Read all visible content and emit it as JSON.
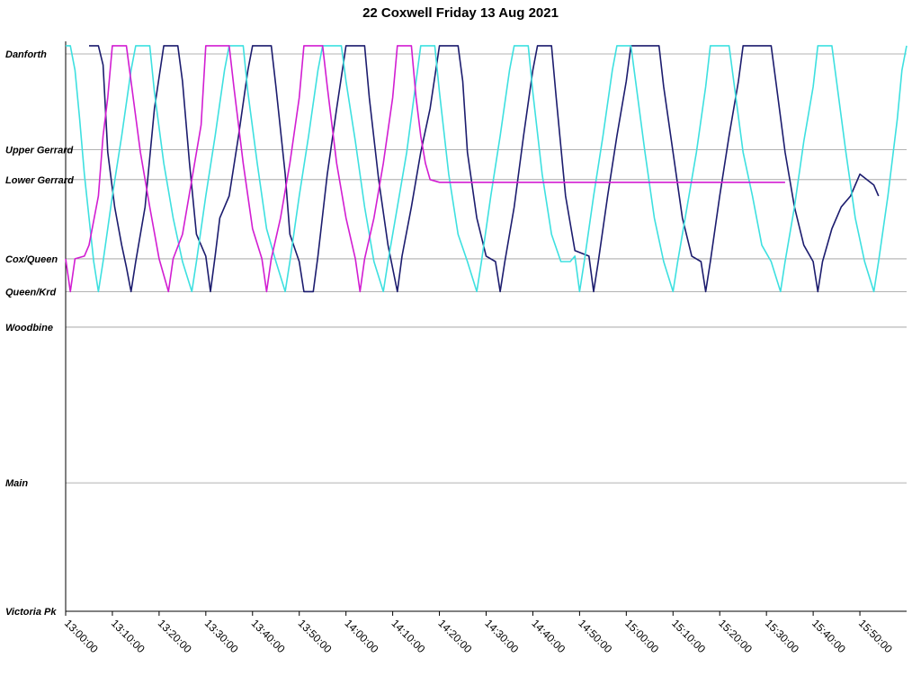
{
  "chart_data": {
    "type": "line",
    "title": "22 Coxwell Friday 13 Aug 2021",
    "xlabel": "",
    "ylabel": "",
    "x_ticks": [
      "13:00:00",
      "13:10:00",
      "13:20:00",
      "13:30:00",
      "13:40:00",
      "13:50:00",
      "14:00:00",
      "14:10:00",
      "14:20:00",
      "14:30:00",
      "14:40:00",
      "14:50:00",
      "15:00:00",
      "15:10:00",
      "15:20:00",
      "15:30:00",
      "15:40:00",
      "15:50:00"
    ],
    "xlim": [
      "13:00:00",
      "16:00:00"
    ],
    "y_stops": [
      {
        "name": "Danforth",
        "value": 0.0
      },
      {
        "name": "Upper Gerrard",
        "value": 1.75
      },
      {
        "name": "Lower Gerrard",
        "value": 2.3
      },
      {
        "name": "Cox/Queen",
        "value": 3.75
      },
      {
        "name": "Queen/Krd",
        "value": 4.35
      },
      {
        "name": "Woodbine",
        "value": 5.0
      },
      {
        "name": "Main",
        "value": 7.85
      },
      {
        "name": "Victoria Pk",
        "value": 10.2
      }
    ],
    "ylim": [
      0,
      10.2
    ],
    "grid": true,
    "series": [
      {
        "color": "#1c1c6e",
        "points": [
          [
            "13:05:00",
            -0.15
          ],
          [
            "13:07:00",
            -0.15
          ],
          [
            "13:08:00",
            0.2
          ],
          [
            "13:09:00",
            1.8
          ],
          [
            "13:10:30",
            2.8
          ],
          [
            "13:12:00",
            3.5
          ],
          [
            "13:13:00",
            3.9
          ],
          [
            "13:14:00",
            4.35
          ],
          [
            "13:15:00",
            3.8
          ],
          [
            "13:17:00",
            2.8
          ],
          [
            "13:19:00",
            1.0
          ],
          [
            "13:21:00",
            -0.15
          ],
          [
            "13:24:00",
            -0.15
          ],
          [
            "13:25:00",
            0.5
          ],
          [
            "13:26:30",
            2.0
          ],
          [
            "13:28:00",
            3.3
          ],
          [
            "13:30:00",
            3.7
          ],
          [
            "13:31:00",
            4.35
          ],
          [
            "13:32:00",
            3.7
          ],
          [
            "13:33:00",
            3.0
          ],
          [
            "13:35:00",
            2.6
          ],
          [
            "13:37:00",
            1.5
          ],
          [
            "13:39:00",
            0.3
          ],
          [
            "13:40:00",
            -0.15
          ],
          [
            "13:44:00",
            -0.15
          ],
          [
            "13:45:00",
            0.6
          ],
          [
            "13:47:00",
            2.2
          ],
          [
            "13:48:00",
            3.3
          ],
          [
            "13:50:00",
            3.8
          ],
          [
            "13:51:00",
            4.35
          ],
          [
            "13:53:00",
            4.35
          ],
          [
            "13:54:00",
            3.7
          ],
          [
            "13:56:00",
            2.2
          ],
          [
            "13:58:00",
            1.0
          ],
          [
            "14:00:00",
            -0.15
          ],
          [
            "14:04:00",
            -0.15
          ],
          [
            "14:05:00",
            0.8
          ],
          [
            "14:07:00",
            2.3
          ],
          [
            "14:09:00",
            3.5
          ],
          [
            "14:11:00",
            4.35
          ],
          [
            "14:12:00",
            3.7
          ],
          [
            "14:14:00",
            2.8
          ],
          [
            "14:16:00",
            1.8
          ],
          [
            "14:18:00",
            1.0
          ],
          [
            "14:20:00",
            -0.15
          ],
          [
            "14:24:00",
            -0.15
          ],
          [
            "14:25:00",
            0.5
          ],
          [
            "14:26:00",
            1.8
          ],
          [
            "14:28:00",
            3.0
          ],
          [
            "14:30:00",
            3.7
          ],
          [
            "14:32:00",
            3.8
          ],
          [
            "14:33:00",
            4.35
          ],
          [
            "14:34:00",
            3.8
          ],
          [
            "14:36:00",
            2.8
          ],
          [
            "14:38:00",
            1.5
          ],
          [
            "14:40:00",
            0.3
          ],
          [
            "14:41:00",
            -0.15
          ],
          [
            "14:44:00",
            -0.15
          ],
          [
            "14:45:00",
            0.8
          ],
          [
            "14:47:00",
            2.6
          ],
          [
            "14:49:00",
            3.6
          ],
          [
            "14:52:00",
            3.7
          ],
          [
            "14:53:00",
            4.35
          ],
          [
            "14:54:00",
            3.8
          ],
          [
            "14:56:00",
            2.6
          ],
          [
            "14:58:00",
            1.5
          ],
          [
            "15:00:00",
            0.5
          ],
          [
            "15:01:00",
            -0.15
          ],
          [
            "15:07:00",
            -0.15
          ],
          [
            "15:08:00",
            0.6
          ],
          [
            "15:10:00",
            1.8
          ],
          [
            "15:12:00",
            3.0
          ],
          [
            "15:14:00",
            3.7
          ],
          [
            "15:16:00",
            3.8
          ],
          [
            "15:17:00",
            4.35
          ],
          [
            "15:18:00",
            3.8
          ],
          [
            "15:20:00",
            2.6
          ],
          [
            "15:22:00",
            1.5
          ],
          [
            "15:24:00",
            0.5
          ],
          [
            "15:25:00",
            -0.15
          ],
          [
            "15:31:00",
            -0.15
          ],
          [
            "15:32:00",
            0.5
          ],
          [
            "15:34:00",
            1.8
          ],
          [
            "15:36:00",
            2.8
          ],
          [
            "15:38:00",
            3.5
          ],
          [
            "15:40:00",
            3.8
          ],
          [
            "15:41:00",
            4.35
          ],
          [
            "15:42:00",
            3.8
          ],
          [
            "15:44:00",
            3.2
          ],
          [
            "15:46:00",
            2.8
          ],
          [
            "15:48:00",
            2.6
          ],
          [
            "15:50:00",
            2.2
          ],
          [
            "15:53:00",
            2.4
          ],
          [
            "15:54:00",
            2.6
          ]
        ]
      },
      {
        "color": "#3ee0e0",
        "points": [
          [
            "13:00:00",
            -0.15
          ],
          [
            "13:01:00",
            -0.15
          ],
          [
            "13:02:00",
            0.3
          ],
          [
            "13:03:00",
            1.2
          ],
          [
            "13:04:00",
            2.2
          ],
          [
            "13:05:00",
            3.0
          ],
          [
            "13:06:00",
            3.8
          ],
          [
            "13:07:00",
            4.35
          ],
          [
            "13:08:00",
            3.8
          ],
          [
            "13:10:00",
            2.6
          ],
          [
            "13:12:00",
            1.5
          ],
          [
            "13:14:00",
            0.3
          ],
          [
            "13:15:00",
            -0.15
          ],
          [
            "13:18:00",
            -0.15
          ],
          [
            "13:19:00",
            0.7
          ],
          [
            "13:21:00",
            2.0
          ],
          [
            "13:23:00",
            3.0
          ],
          [
            "13:25:00",
            3.8
          ],
          [
            "13:27:00",
            4.35
          ],
          [
            "13:28:00",
            3.8
          ],
          [
            "13:30:00",
            2.6
          ],
          [
            "13:32:00",
            1.5
          ],
          [
            "13:34:00",
            0.3
          ],
          [
            "13:35:00",
            -0.15
          ],
          [
            "13:38:00",
            -0.15
          ],
          [
            "13:39:00",
            0.7
          ],
          [
            "13:41:00",
            2.0
          ],
          [
            "13:43:00",
            3.2
          ],
          [
            "13:45:00",
            3.8
          ],
          [
            "13:47:00",
            4.35
          ],
          [
            "13:48:00",
            3.8
          ],
          [
            "13:50:00",
            2.6
          ],
          [
            "13:52:00",
            1.5
          ],
          [
            "13:54:00",
            0.3
          ],
          [
            "13:55:00",
            -0.15
          ],
          [
            "13:59:00",
            -0.15
          ],
          [
            "14:00:00",
            0.5
          ],
          [
            "14:02:00",
            1.6
          ],
          [
            "14:04:00",
            2.8
          ],
          [
            "14:06:00",
            3.8
          ],
          [
            "14:08:00",
            4.35
          ],
          [
            "14:09:00",
            3.8
          ],
          [
            "14:11:00",
            2.8
          ],
          [
            "14:13:00",
            1.8
          ],
          [
            "14:15:00",
            0.5
          ],
          [
            "14:16:00",
            -0.15
          ],
          [
            "14:19:00",
            -0.15
          ],
          [
            "14:20:00",
            0.7
          ],
          [
            "14:22:00",
            2.2
          ],
          [
            "14:24:00",
            3.3
          ],
          [
            "14:26:00",
            3.8
          ],
          [
            "14:28:00",
            4.35
          ],
          [
            "14:29:00",
            3.8
          ],
          [
            "14:31:00",
            2.6
          ],
          [
            "14:33:00",
            1.5
          ],
          [
            "14:35:00",
            0.3
          ],
          [
            "14:36:00",
            -0.15
          ],
          [
            "14:39:00",
            -0.15
          ],
          [
            "14:40:00",
            0.7
          ],
          [
            "14:42:00",
            2.2
          ],
          [
            "14:44:00",
            3.3
          ],
          [
            "14:46:00",
            3.8
          ],
          [
            "14:48:00",
            3.8
          ],
          [
            "14:49:00",
            3.7
          ],
          [
            "14:50:00",
            4.35
          ],
          [
            "14:51:00",
            3.8
          ],
          [
            "14:53:00",
            2.6
          ],
          [
            "14:55:00",
            1.5
          ],
          [
            "14:57:00",
            0.3
          ],
          [
            "14:58:00",
            -0.15
          ],
          [
            "15:01:00",
            -0.15
          ],
          [
            "15:02:00",
            0.5
          ],
          [
            "15:04:00",
            1.8
          ],
          [
            "15:06:00",
            3.0
          ],
          [
            "15:08:00",
            3.8
          ],
          [
            "15:10:00",
            4.35
          ],
          [
            "15:11:00",
            3.8
          ],
          [
            "15:13:00",
            2.8
          ],
          [
            "15:15:00",
            1.8
          ],
          [
            "15:17:00",
            0.6
          ],
          [
            "15:18:00",
            -0.15
          ],
          [
            "15:22:00",
            -0.15
          ],
          [
            "15:23:00",
            0.5
          ],
          [
            "15:25:00",
            1.8
          ],
          [
            "15:27:00",
            2.6
          ],
          [
            "15:29:00",
            3.5
          ],
          [
            "15:31:00",
            3.8
          ],
          [
            "15:33:00",
            4.35
          ],
          [
            "15:34:00",
            3.8
          ],
          [
            "15:36:00",
            2.8
          ],
          [
            "15:38:00",
            1.6
          ],
          [
            "15:40:00",
            0.6
          ],
          [
            "15:41:00",
            -0.15
          ],
          [
            "15:44:00",
            -0.15
          ],
          [
            "15:45:00",
            0.5
          ],
          [
            "15:47:00",
            1.8
          ],
          [
            "15:49:00",
            3.0
          ],
          [
            "15:51:00",
            3.8
          ],
          [
            "15:53:00",
            4.35
          ],
          [
            "15:54:00",
            3.8
          ],
          [
            "15:56:00",
            2.6
          ],
          [
            "15:58:00",
            1.2
          ],
          [
            "15:59:00",
            0.3
          ],
          [
            "16:00:00",
            -0.15
          ]
        ]
      },
      {
        "color": "#d21ed2",
        "points": [
          [
            "13:00:00",
            3.75
          ],
          [
            "13:01:00",
            4.35
          ],
          [
            "13:02:00",
            3.75
          ],
          [
            "13:04:00",
            3.7
          ],
          [
            "13:05:00",
            3.5
          ],
          [
            "13:07:00",
            2.6
          ],
          [
            "13:08:00",
            1.5
          ],
          [
            "13:09:00",
            0.8
          ],
          [
            "13:10:00",
            -0.15
          ],
          [
            "13:13:00",
            -0.15
          ],
          [
            "13:14:00",
            0.5
          ],
          [
            "13:16:00",
            1.8
          ],
          [
            "13:18:00",
            2.8
          ],
          [
            "13:20:00",
            3.75
          ],
          [
            "13:22:00",
            4.35
          ],
          [
            "13:23:00",
            3.75
          ],
          [
            "13:25:00",
            3.3
          ],
          [
            "13:27:00",
            2.3
          ],
          [
            "13:29:00",
            1.3
          ],
          [
            "13:30:00",
            -0.15
          ],
          [
            "13:35:00",
            -0.15
          ],
          [
            "13:36:00",
            0.6
          ],
          [
            "13:38:00",
            2.0
          ],
          [
            "13:40:00",
            3.2
          ],
          [
            "13:42:00",
            3.75
          ],
          [
            "13:43:00",
            4.35
          ],
          [
            "13:44:00",
            3.75
          ],
          [
            "13:46:00",
            3.0
          ],
          [
            "13:48:00",
            2.0
          ],
          [
            "13:50:00",
            0.8
          ],
          [
            "13:51:00",
            -0.15
          ],
          [
            "13:55:00",
            -0.15
          ],
          [
            "13:56:00",
            0.6
          ],
          [
            "13:58:00",
            2.0
          ],
          [
            "14:00:00",
            3.0
          ],
          [
            "14:02:00",
            3.75
          ],
          [
            "14:03:00",
            4.35
          ],
          [
            "14:04:00",
            3.75
          ],
          [
            "14:06:00",
            3.0
          ],
          [
            "14:08:00",
            2.0
          ],
          [
            "14:10:00",
            0.8
          ],
          [
            "14:11:00",
            -0.15
          ],
          [
            "14:14:00",
            -0.15
          ],
          [
            "14:15:00",
            0.8
          ],
          [
            "14:16:00",
            1.5
          ],
          [
            "14:17:00",
            2.0
          ],
          [
            "14:18:00",
            2.3
          ],
          [
            "14:20:00",
            2.35
          ],
          [
            "14:40:00",
            2.35
          ],
          [
            "15:00:00",
            2.35
          ],
          [
            "15:20:00",
            2.35
          ],
          [
            "15:34:00",
            2.35
          ]
        ]
      }
    ]
  }
}
